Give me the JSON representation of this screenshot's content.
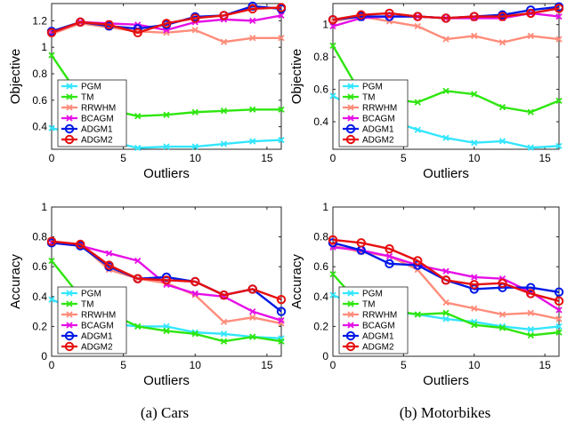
{
  "series_styles": [
    {
      "name": "PGM",
      "color": "#33e6ff",
      "marker": "x"
    },
    {
      "name": "TM",
      "color": "#2ee60f",
      "marker": "x"
    },
    {
      "name": "RRWHM",
      "color": "#ff8c7a",
      "marker": "x"
    },
    {
      "name": "BCAGM",
      "color": "#e60fe6",
      "marker": "x"
    },
    {
      "name": "ADGM1",
      "color": "#0019e6",
      "marker": "o"
    },
    {
      "name": "ADGM2",
      "color": "#e60f0f",
      "marker": "o"
    }
  ],
  "chart_data": [
    {
      "type": "line",
      "panel": "cars-objective",
      "xlabel": "Outliers",
      "ylabel": "Objective",
      "xlim": [
        0,
        16
      ],
      "ylim": [
        0.23,
        1.33
      ],
      "xticks": [
        "0",
        "5",
        "10",
        "15"
      ],
      "yticks": [
        "0.4",
        "0.6",
        "0.8",
        "1",
        "1.2"
      ],
      "legend_position": "bottom-left",
      "x": [
        0,
        2,
        4,
        6,
        8,
        10,
        12,
        14,
        16
      ],
      "series": [
        {
          "name": "PGM",
          "values": [
            0.39,
            0.34,
            0.29,
            0.24,
            0.25,
            0.25,
            0.27,
            0.29,
            0.3
          ]
        },
        {
          "name": "TM",
          "values": [
            0.94,
            0.62,
            0.53,
            0.48,
            0.49,
            0.51,
            0.52,
            0.53,
            0.53
          ]
        },
        {
          "name": "RRWHM",
          "values": [
            1.1,
            1.18,
            1.15,
            1.12,
            1.11,
            1.13,
            1.04,
            1.07,
            1.07
          ]
        },
        {
          "name": "BCAGM",
          "values": [
            1.11,
            1.19,
            1.18,
            1.17,
            1.13,
            1.19,
            1.21,
            1.2,
            1.24
          ]
        },
        {
          "name": "ADGM1",
          "values": [
            1.12,
            1.19,
            1.16,
            1.14,
            1.17,
            1.23,
            1.24,
            1.31,
            1.29
          ]
        },
        {
          "name": "ADGM2",
          "values": [
            1.11,
            1.19,
            1.17,
            1.11,
            1.18,
            1.22,
            1.24,
            1.29,
            1.3
          ]
        }
      ]
    },
    {
      "type": "line",
      "panel": "motorbikes-objective",
      "xlabel": "Outliers",
      "ylabel": "Objective",
      "xlim": [
        0,
        16
      ],
      "ylim": [
        0.23,
        1.13
      ],
      "xticks": [
        "0",
        "5",
        "10",
        "15"
      ],
      "yticks": [
        "0.4",
        "0.6",
        "0.8",
        "1"
      ],
      "legend_position": "bottom-left",
      "x": [
        0,
        2,
        4,
        6,
        8,
        10,
        12,
        14,
        16
      ],
      "series": [
        {
          "name": "PGM",
          "values": [
            0.56,
            0.46,
            0.41,
            0.35,
            0.3,
            0.27,
            0.28,
            0.24,
            0.25
          ]
        },
        {
          "name": "TM",
          "values": [
            0.87,
            0.57,
            0.54,
            0.52,
            0.59,
            0.57,
            0.49,
            0.46,
            0.53
          ]
        },
        {
          "name": "RRWHM",
          "values": [
            1.02,
            1.05,
            1.02,
            0.99,
            0.91,
            0.93,
            0.89,
            0.93,
            0.91
          ]
        },
        {
          "name": "BCAGM",
          "values": [
            0.99,
            1.04,
            1.05,
            1.05,
            1.04,
            1.04,
            1.04,
            1.07,
            1.05
          ]
        },
        {
          "name": "ADGM1",
          "values": [
            1.03,
            1.05,
            1.05,
            1.05,
            1.04,
            1.05,
            1.06,
            1.09,
            1.11
          ]
        },
        {
          "name": "ADGM2",
          "values": [
            1.03,
            1.06,
            1.07,
            1.05,
            1.04,
            1.05,
            1.05,
            1.07,
            1.1
          ]
        }
      ]
    },
    {
      "type": "line",
      "panel": "cars-accuracy",
      "xlabel": "Outliers",
      "ylabel": "Accuracy",
      "xlim": [
        0,
        16
      ],
      "ylim": [
        0,
        1
      ],
      "xticks": [
        "0",
        "5",
        "10",
        "15"
      ],
      "yticks": [
        "0",
        "0.2",
        "0.4",
        "0.6",
        "0.8",
        "1"
      ],
      "legend_position": "bottom-left",
      "x": [
        0,
        2,
        4,
        6,
        8,
        10,
        12,
        14,
        16
      ],
      "series": [
        {
          "name": "PGM",
          "values": [
            0.38,
            0.3,
            0.22,
            0.2,
            0.2,
            0.16,
            0.15,
            0.13,
            0.12
          ]
        },
        {
          "name": "TM",
          "values": [
            0.64,
            0.4,
            0.29,
            0.2,
            0.17,
            0.15,
            0.1,
            0.13,
            0.1
          ]
        },
        {
          "name": "RRWHM",
          "values": [
            0.76,
            0.75,
            0.58,
            0.52,
            0.49,
            0.41,
            0.23,
            0.26,
            0.22
          ]
        },
        {
          "name": "BCAGM",
          "values": [
            0.76,
            0.74,
            0.69,
            0.64,
            0.48,
            0.42,
            0.4,
            0.3,
            0.24
          ]
        },
        {
          "name": "ADGM1",
          "values": [
            0.76,
            0.74,
            0.6,
            0.52,
            0.53,
            0.5,
            0.41,
            0.45,
            0.3
          ]
        },
        {
          "name": "ADGM2",
          "values": [
            0.77,
            0.75,
            0.61,
            0.52,
            0.51,
            0.5,
            0.41,
            0.45,
            0.38
          ]
        }
      ]
    },
    {
      "type": "line",
      "panel": "motorbikes-accuracy",
      "xlabel": "Outliers",
      "ylabel": "Accuracy",
      "xlim": [
        0,
        16
      ],
      "ylim": [
        0,
        1
      ],
      "xticks": [
        "0",
        "5",
        "10",
        "15"
      ],
      "yticks": [
        "0",
        "0.2",
        "0.4",
        "0.6",
        "0.8",
        "1"
      ],
      "legend_position": "bottom-left",
      "x": [
        0,
        2,
        4,
        6,
        8,
        10,
        12,
        14,
        16
      ],
      "series": [
        {
          "name": "PGM",
          "values": [
            0.41,
            0.33,
            0.3,
            0.28,
            0.25,
            0.23,
            0.2,
            0.18,
            0.2
          ]
        },
        {
          "name": "TM",
          "values": [
            0.55,
            0.34,
            0.31,
            0.28,
            0.29,
            0.21,
            0.19,
            0.14,
            0.16
          ]
        },
        {
          "name": "RRWHM",
          "values": [
            0.74,
            0.7,
            0.67,
            0.58,
            0.36,
            0.32,
            0.28,
            0.29,
            0.25
          ]
        },
        {
          "name": "BCAGM",
          "values": [
            0.73,
            0.71,
            0.67,
            0.61,
            0.57,
            0.53,
            0.52,
            0.43,
            0.31
          ]
        },
        {
          "name": "ADGM1",
          "values": [
            0.76,
            0.71,
            0.62,
            0.61,
            0.51,
            0.45,
            0.46,
            0.46,
            0.43
          ]
        },
        {
          "name": "ADGM2",
          "values": [
            0.78,
            0.76,
            0.72,
            0.64,
            0.51,
            0.48,
            0.49,
            0.42,
            0.37
          ]
        }
      ]
    }
  ],
  "captions": {
    "cars": "(a) Cars",
    "motorbikes": "(b) Motorbikes"
  }
}
